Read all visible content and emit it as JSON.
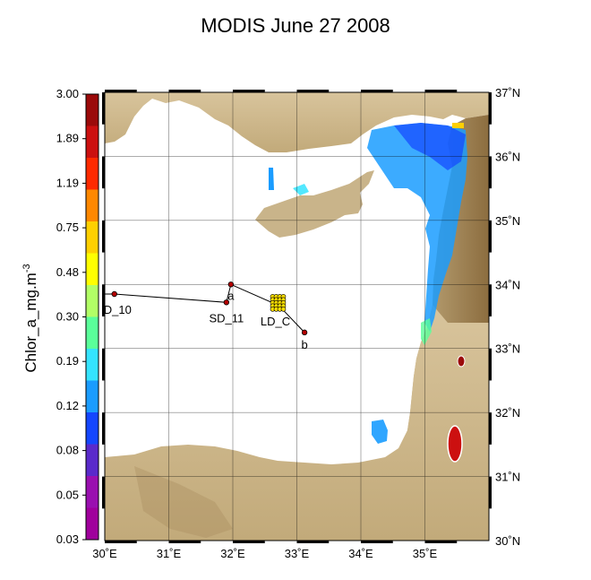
{
  "title": "MODIS June 27 2008",
  "colorbar": {
    "label": "Chlor_a_mg.m",
    "label_exponent": "-3",
    "ticks": [
      "3.00",
      "1.89",
      "1.19",
      "0.75",
      "0.48",
      "0.30",
      "0.19",
      "0.12",
      "0.08",
      "0.05",
      "0.03"
    ],
    "colors": [
      "#9b0a0a",
      "#cc1010",
      "#ff2a00",
      "#ff8800",
      "#ffd000",
      "#ffff00",
      "#b2ff66",
      "#5aff9a",
      "#35e4ff",
      "#1a9cff",
      "#1446ff",
      "#5a2acb",
      "#9a10b0",
      "#a0009c"
    ]
  },
  "lon_labels": [
    "30˚E",
    "31˚E",
    "32˚E",
    "33˚E",
    "34˚E",
    "35˚E"
  ],
  "lat_labels": [
    "37˚N",
    "36˚N",
    "35˚N",
    "34˚N",
    "33˚N",
    "32˚N",
    "31˚N",
    "30˚N"
  ],
  "map_extent": {
    "lon": [
      30,
      36
    ],
    "lat": [
      30,
      37
    ]
  },
  "stations": [
    {
      "name": "D_10",
      "lon": 30.15,
      "lat": 33.85
    },
    {
      "name": "SD_11",
      "lon": 31.9,
      "lat": 33.72
    },
    {
      "name": "a",
      "lon": 31.97,
      "lat": 34.0
    },
    {
      "name": "LD_C",
      "lon": 32.72,
      "lat": 33.67
    },
    {
      "name": "b",
      "lon": 33.12,
      "lat": 33.25
    }
  ],
  "colors": {
    "land": "#c8b48a",
    "land_dark": "#9e8150",
    "sea": "#ffffff",
    "track": "#000000",
    "station_fill": "#b30000",
    "grid": "#000000"
  }
}
